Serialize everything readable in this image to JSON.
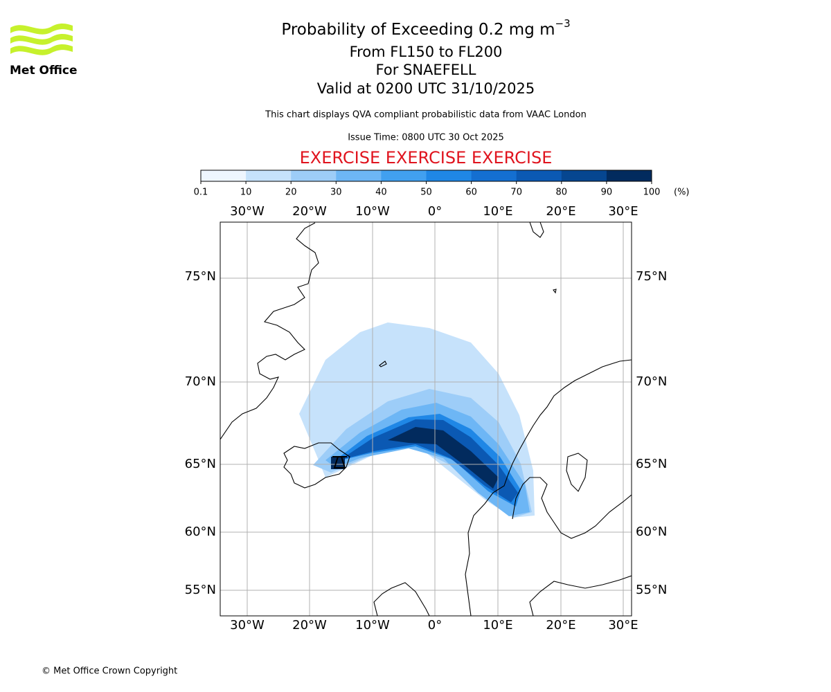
{
  "header": {
    "logo_text": "Met Office",
    "title": "Probability of Exceeding 0.2 mg m",
    "title_superscript": "−3",
    "lines": [
      "From FL150 to FL200",
      "For SNAEFELL",
      "Valid at 0200 UTC 31/10/2025"
    ],
    "note": "This chart displays QVA compliant probabilistic data from VAAC London",
    "issue_time": "Issue Time: 0800 UTC 30 Oct 2025",
    "exercise": "EXERCISE EXERCISE EXERCISE"
  },
  "colorbar": {
    "ticks": [
      0.1,
      10,
      20,
      30,
      40,
      50,
      60,
      70,
      80,
      90,
      100
    ],
    "unit": "(%)",
    "colors": [
      "#eef6fe",
      "#c6e2fb",
      "#9dcdf8",
      "#6db6f5",
      "#41a0f0",
      "#1f87e6",
      "#146fd1",
      "#0b59b3",
      "#064690",
      "#022b5e"
    ]
  },
  "map": {
    "lon_labels": [
      "30°W",
      "20°W",
      "10°W",
      "0°",
      "10°E",
      "20°E",
      "30°E"
    ],
    "lat_labels": [
      "75°N",
      "70°N",
      "65°N",
      "60°N",
      "55°N"
    ]
  },
  "footer": "© Met Office Crown Copyright"
}
